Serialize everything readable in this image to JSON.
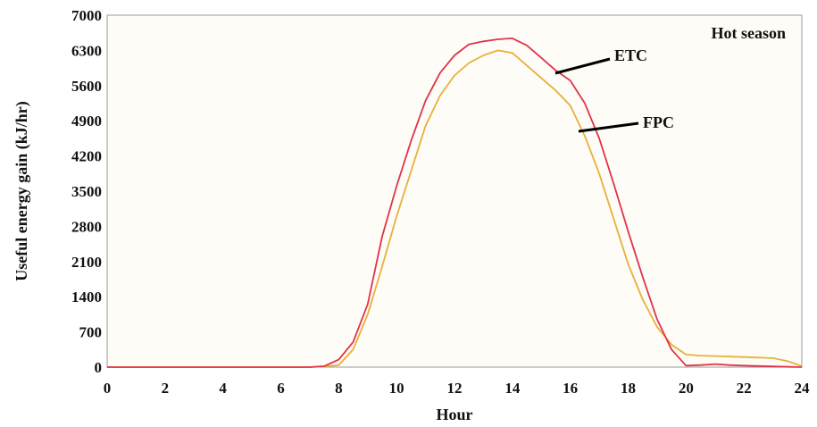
{
  "chart_data": {
    "type": "line",
    "title": "",
    "annotation": "Hot season",
    "xlabel": "Hour",
    "ylabel": "Useful energy gain (kJ/hr)",
    "xlim": [
      0,
      24
    ],
    "ylim": [
      0,
      7000
    ],
    "xticks": [
      "0",
      "2",
      "4",
      "6",
      "8",
      "10",
      "12",
      "14",
      "16",
      "18",
      "20",
      "22",
      "24"
    ],
    "yticks": [
      "0",
      "700",
      "1400",
      "2100",
      "2800",
      "3500",
      "4200",
      "4900",
      "5600",
      "6300",
      "7000"
    ],
    "grid": false,
    "legend": "inline-labels",
    "series": [
      {
        "name": "ETC",
        "color": "#e0334a",
        "x": [
          0,
          1.5,
          2.5,
          7,
          7.5,
          8,
          8.5,
          9,
          9.5,
          10,
          10.5,
          11,
          11.5,
          12,
          12.5,
          13,
          13.5,
          14,
          14.5,
          15,
          15.5,
          16,
          16.5,
          17,
          17.5,
          18,
          18.5,
          19,
          19.5,
          20,
          20.5,
          21,
          21.5,
          22,
          23,
          24
        ],
        "y": [
          0,
          0,
          0,
          0,
          20,
          150,
          500,
          1250,
          2600,
          3600,
          4500,
          5300,
          5850,
          6200,
          6420,
          6480,
          6520,
          6540,
          6400,
          6150,
          5900,
          5700,
          5250,
          4550,
          3650,
          2700,
          1800,
          950,
          350,
          30,
          40,
          60,
          40,
          30,
          15,
          0
        ]
      },
      {
        "name": "FPC",
        "color": "#e8b03a",
        "x": [
          0,
          7,
          7.5,
          8,
          8.5,
          9,
          9.5,
          10,
          10.5,
          11,
          11.5,
          12,
          12.5,
          13,
          13.5,
          14,
          14.5,
          15,
          15.5,
          16,
          16.5,
          17,
          17.5,
          18,
          18.5,
          19,
          19.5,
          20,
          20.5,
          21,
          22,
          23,
          23.5,
          24
        ],
        "y": [
          0,
          0,
          10,
          40,
          350,
          1050,
          2000,
          3000,
          3900,
          4800,
          5400,
          5800,
          6050,
          6200,
          6300,
          6250,
          6000,
          5750,
          5500,
          5200,
          4600,
          3850,
          2950,
          2050,
          1350,
          800,
          450,
          250,
          230,
          220,
          200,
          180,
          120,
          20
        ]
      }
    ],
    "labels": [
      "ETC",
      "FPC"
    ]
  }
}
